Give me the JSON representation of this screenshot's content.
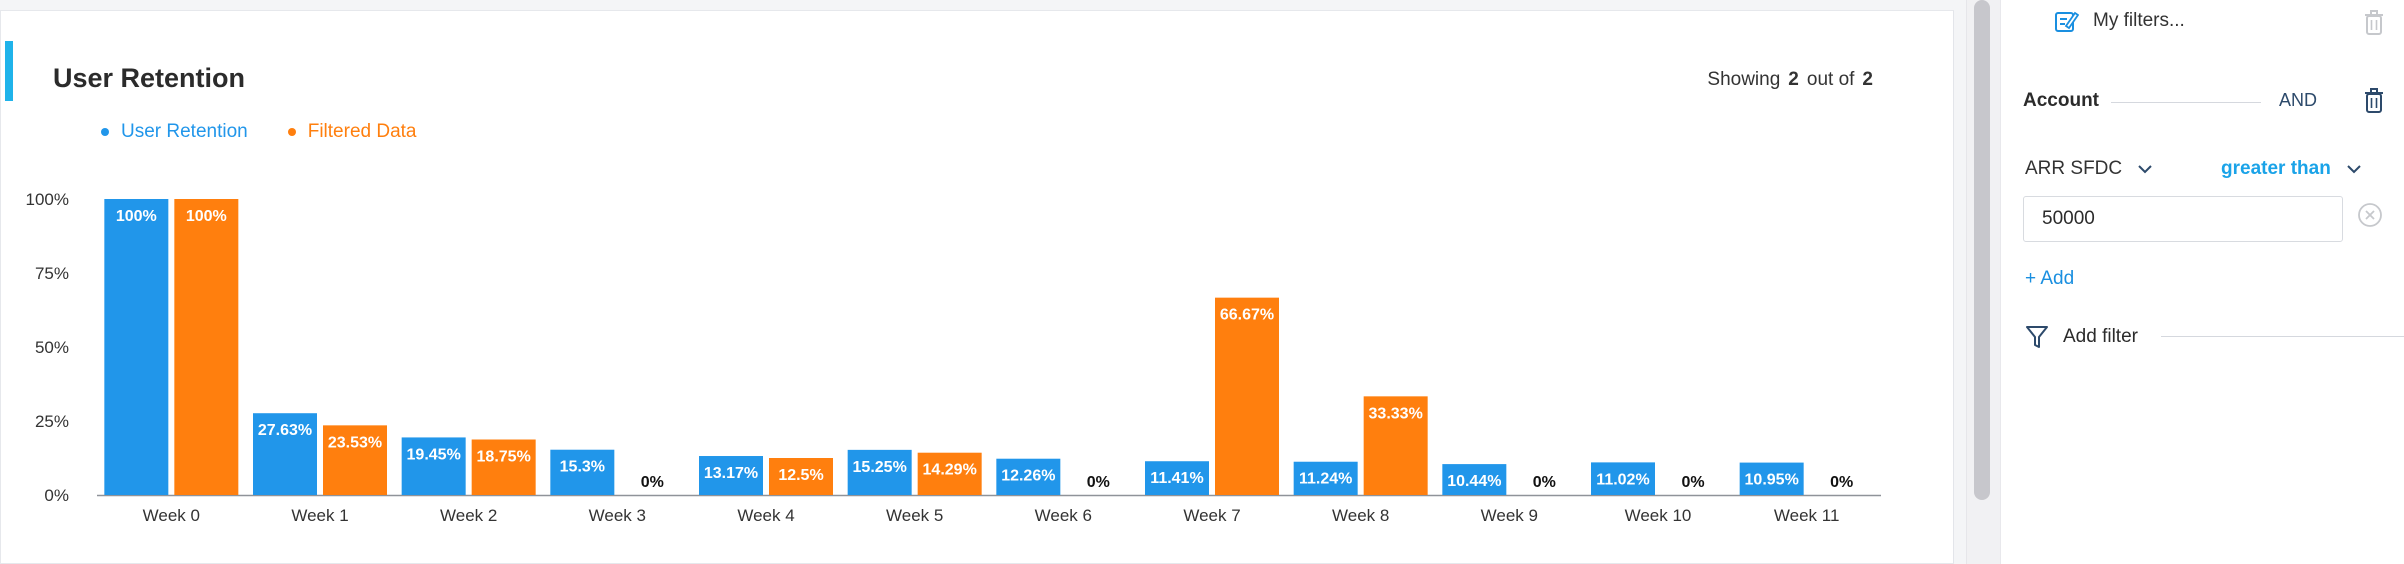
{
  "header": {
    "title": "User Retention",
    "showing_prefix": "Showing",
    "showing_count": "2",
    "showing_mid": "out of",
    "showing_total": "2"
  },
  "colors": {
    "accent": "#1fb3ea",
    "series_1": "#2196ea",
    "series_2": "#ff7f0e"
  },
  "chart_data": {
    "type": "bar",
    "title": "User Retention",
    "xlabel": "",
    "ylabel": "",
    "ylim": [
      0,
      100
    ],
    "yticks": [
      "0%",
      "25%",
      "50%",
      "75%",
      "100%"
    ],
    "ytick_values": [
      0,
      25,
      50,
      75,
      100
    ],
    "categories": [
      "Week 0",
      "Week 1",
      "Week 2",
      "Week 3",
      "Week 4",
      "Week 5",
      "Week 6",
      "Week 7",
      "Week 8",
      "Week 9",
      "Week 10",
      "Week 11"
    ],
    "series": [
      {
        "name": "User Retention",
        "color": "#2196ea",
        "values": [
          100,
          27.63,
          19.45,
          15.3,
          13.17,
          15.25,
          12.26,
          11.41,
          11.24,
          10.44,
          11.02,
          10.95
        ],
        "labels": [
          "100%",
          "27.63%",
          "19.45%",
          "15.3%",
          "13.17%",
          "15.25%",
          "12.26%",
          "11.41%",
          "11.24%",
          "10.44%",
          "11.02%",
          "10.95%"
        ]
      },
      {
        "name": "Filtered Data",
        "color": "#ff7f0e",
        "values": [
          100,
          23.53,
          18.75,
          0,
          12.5,
          14.29,
          0,
          66.67,
          33.33,
          0,
          0,
          0
        ],
        "labels": [
          "100%",
          "23.53%",
          "18.75%",
          "0%",
          "12.5%",
          "14.29%",
          "0%",
          "66.67%",
          "33.33%",
          "0%",
          "0%",
          "0%"
        ]
      }
    ],
    "legend_position": "top-left",
    "grid": false
  },
  "filters": {
    "my_filters_label": "My filters...",
    "group_label": "Account",
    "conjunction": "AND",
    "condition": {
      "field": "ARR SFDC",
      "operator": "greater than",
      "value": "50000"
    },
    "add_label": "+ Add",
    "add_filter_label": "Add filter"
  },
  "icons": {
    "my_filters": "edit-filter-icon",
    "trash": "trash-icon",
    "chevron": "chevron-down-icon",
    "clear": "clear-circle-icon",
    "funnel": "funnel-icon"
  }
}
